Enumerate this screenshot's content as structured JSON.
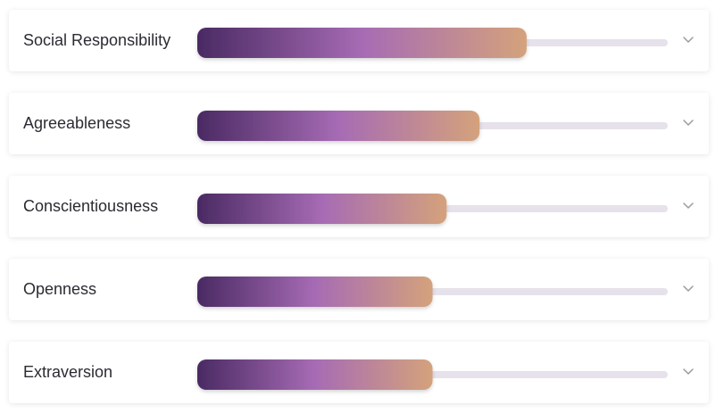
{
  "chart_data": {
    "type": "bar",
    "orientation": "horizontal",
    "categories": [
      "Social Responsibility",
      "Agreeableness",
      "Conscientiousness",
      "Openness",
      "Extraversion"
    ],
    "values": [
      70,
      60,
      53,
      50,
      50
    ],
    "xlim": [
      0,
      100
    ],
    "colors": [
      "#4a2a63",
      "#a66bb4",
      "#d4a27c"
    ],
    "track_color": "#e6e1ea"
  }
}
